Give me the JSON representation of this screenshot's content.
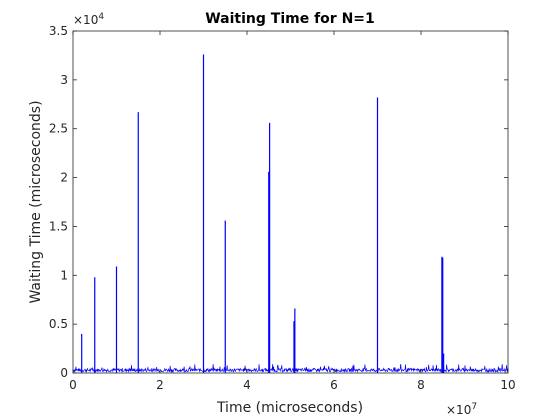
{
  "chart_data": {
    "type": "line",
    "title": "Waiting Time for N=1",
    "xlabel": "Time (microseconds)",
    "ylabel": "Waiting Time (microseconds)",
    "xlim": [
      0,
      100000000
    ],
    "ylim": [
      0,
      35000
    ],
    "x_ticks": [
      0,
      20000000,
      40000000,
      60000000,
      80000000,
      100000000
    ],
    "x_tick_labels": [
      "0",
      "2",
      "4",
      "6",
      "8",
      "10"
    ],
    "y_ticks": [
      0,
      5000,
      10000,
      15000,
      20000,
      25000,
      30000,
      35000
    ],
    "y_tick_labels": [
      "0",
      "0.5",
      "1",
      "1.5",
      "2",
      "2.5",
      "3",
      "3.5"
    ],
    "x_exponent": {
      "base": "×10",
      "power": "7"
    },
    "y_exponent": {
      "base": "×10",
      "power": "4"
    },
    "grid": false,
    "series_color": "#0000ff",
    "baseline_level": 300,
    "baseline_noise": 500,
    "spikes": [
      {
        "x": 2000000,
        "y": 4000
      },
      {
        "x": 5000000,
        "y": 9800
      },
      {
        "x": 10000000,
        "y": 10900
      },
      {
        "x": 15000000,
        "y": 26700
      },
      {
        "x": 30000000,
        "y": 32600
      },
      {
        "x": 35000000,
        "y": 15600
      },
      {
        "x": 45000000,
        "y": 20600
      },
      {
        "x": 45200000,
        "y": 25600
      },
      {
        "x": 50800000,
        "y": 5300
      },
      {
        "x": 51000000,
        "y": 6600
      },
      {
        "x": 70000000,
        "y": 28200
      },
      {
        "x": 84800000,
        "y": 11900
      },
      {
        "x": 85000000,
        "y": 11800
      },
      {
        "x": 85200000,
        "y": 2000
      }
    ]
  }
}
